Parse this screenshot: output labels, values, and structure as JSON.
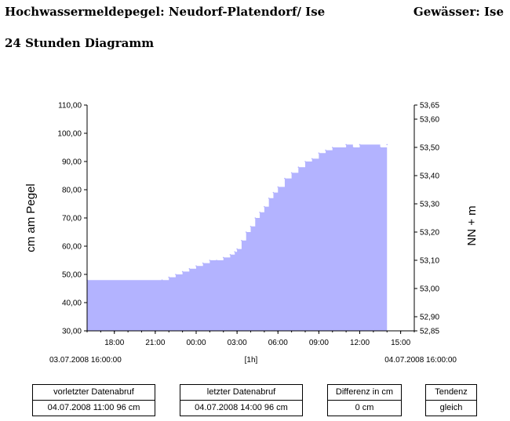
{
  "header": {
    "station": "Hochwassermeldepegel: Neudorf-Platendorf/ Ise",
    "water": "Gewässer: Ise",
    "subtitle": "24 Stunden Diagramm"
  },
  "chart_data": {
    "type": "area",
    "ylabel": "cm am Pegel",
    "y2label": "NN + m",
    "xlabel": "[1h]",
    "start_label": "03.07.2008 16:00:00",
    "end_label": "04.07.2008 16:00:00",
    "ylim": [
      30,
      110
    ],
    "y2lim": [
      52.85,
      53.65
    ],
    "xlim_hours": [
      0,
      24
    ],
    "y_ticks": [
      "30,00",
      "40,00",
      "50,00",
      "60,00",
      "70,00",
      "80,00",
      "90,00",
      "100,00",
      "110,00"
    ],
    "y2_ticks": [
      "52,85",
      "52,90",
      "53,00",
      "53,10",
      "53,20",
      "53,30",
      "53,40",
      "53,50",
      "53,60",
      "53,65"
    ],
    "y2_tick_values": [
      52.85,
      52.9,
      53.0,
      53.1,
      53.2,
      53.3,
      53.4,
      53.5,
      53.6,
      53.65
    ],
    "x_ticks": [
      "18:00",
      "21:00",
      "00:00",
      "03:00",
      "06:00",
      "09:00",
      "12:00",
      "15:00"
    ],
    "x_tick_hours": [
      2,
      5,
      8,
      11,
      14,
      17,
      20,
      23
    ],
    "fill_color": "#b3b3ff",
    "series": [
      {
        "x": [
          "03.07.2008 16:00",
          "03.07.2008 21:30",
          "03.07.2008 22:00",
          "03.07.2008 22:30",
          "03.07.2008 23:00",
          "03.07.2008 23:30",
          "04.07.2008 00:00",
          "04.07.2008 00:30",
          "04.07.2008 01:00",
          "04.07.2008 01:30",
          "04.07.2008 02:00",
          "04.07.2008 02:30",
          "04.07.2008 02:50",
          "04.07.2008 03:00",
          "04.07.2008 03:20",
          "04.07.2008 03:40",
          "04.07.2008 04:00",
          "04.07.2008 04:20",
          "04.07.2008 04:40",
          "04.07.2008 05:00",
          "04.07.2008 05:20",
          "04.07.2008 05:40",
          "04.07.2008 06:00",
          "04.07.2008 06:30",
          "04.07.2008 07:00",
          "04.07.2008 07:30",
          "04.07.2008 08:00",
          "04.07.2008 08:30",
          "04.07.2008 09:00",
          "04.07.2008 09:30",
          "04.07.2008 10:00",
          "04.07.2008 11:00",
          "04.07.2008 11:30",
          "04.07.2008 12:00",
          "04.07.2008 13:30",
          "04.07.2008 14:00"
        ],
        "values": [
          48,
          48,
          49,
          50,
          51,
          52,
          53,
          54,
          55,
          55,
          56,
          57,
          58,
          59,
          62,
          65,
          67,
          70,
          72,
          74,
          77,
          79,
          81,
          84,
          86,
          88,
          90,
          91,
          93,
          94,
          95,
          96,
          95,
          96,
          95,
          96
        ]
      }
    ]
  },
  "boxes": [
    {
      "caption": "vorletzter Datenabruf",
      "value": "04.07.2008  11:00  96 cm"
    },
    {
      "caption": "letzter Datenabruf",
      "value": "04.07.2008  14:00  96 cm"
    },
    {
      "caption": "Differenz in cm",
      "value": "0 cm"
    },
    {
      "caption": "Tendenz",
      "value": "gleich"
    }
  ]
}
